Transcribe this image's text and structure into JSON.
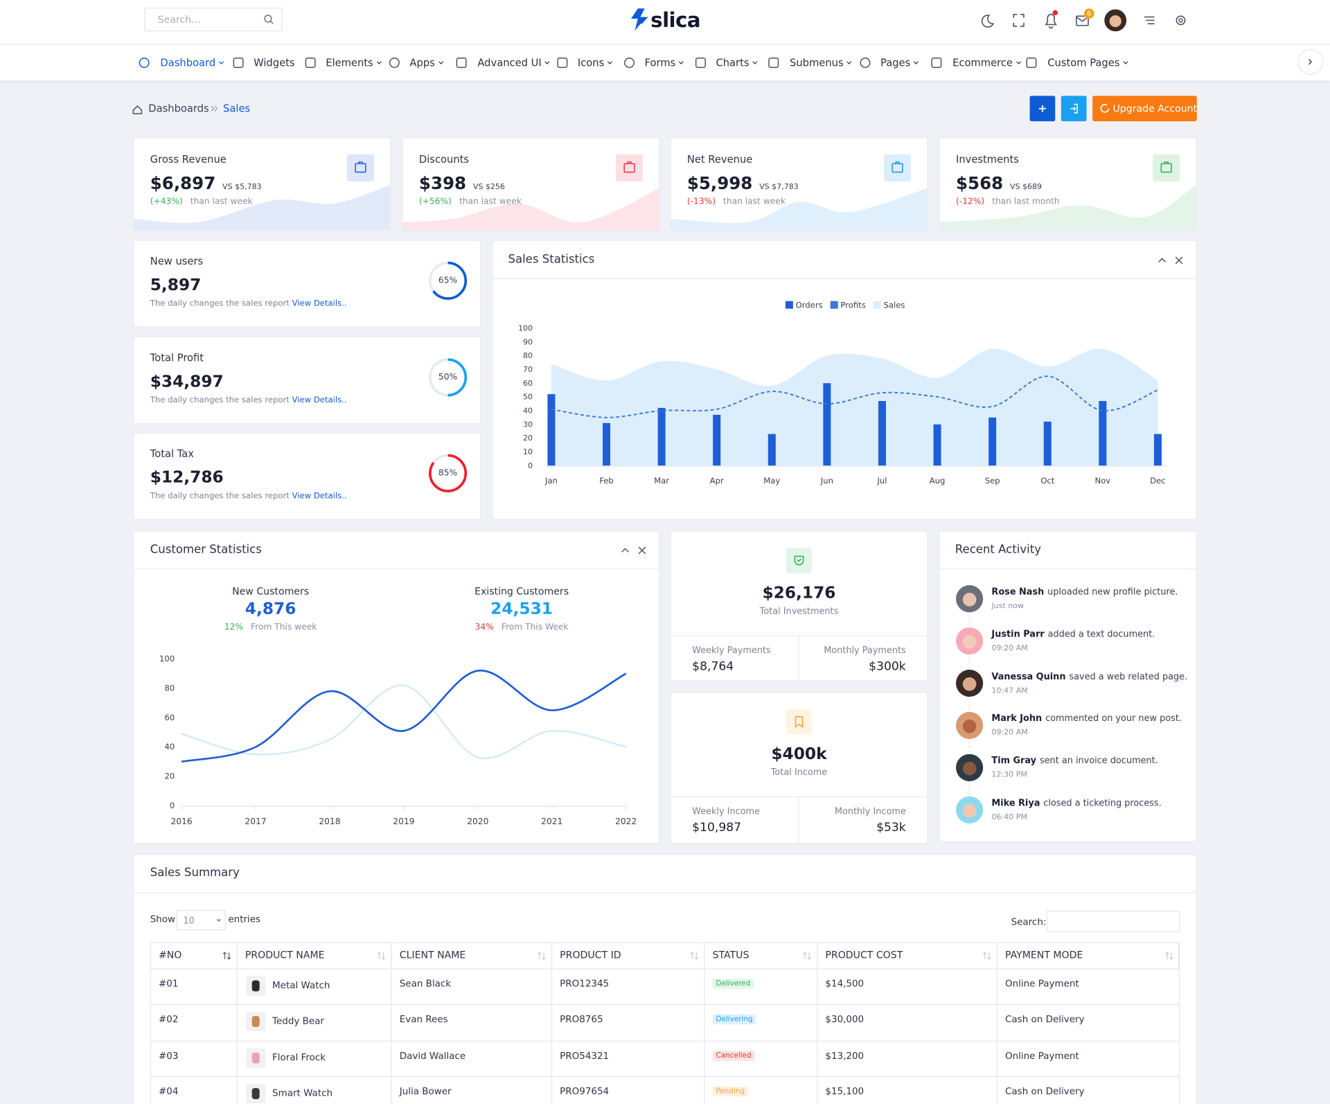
{
  "header": {
    "search_placeholder": "Search...",
    "logo": "slica",
    "mail_badge": "6"
  },
  "nav": [
    "Dashboard",
    "Widgets",
    "Elements",
    "Apps",
    "Advanced UI",
    "Icons",
    "Forms",
    "Charts",
    "Submenus",
    "Pages",
    "Ecommerce",
    "Custom Pages"
  ],
  "breadcrumb": [
    "Dashboards",
    "Sales"
  ],
  "upgrade_button": "Upgrade Account",
  "stat_cards": [
    {
      "title": "Gross Revenue",
      "value": "$6,897",
      "compare": "VS $5,783",
      "change": "(+43%)",
      "period": "than last week"
    },
    {
      "title": "Discounts",
      "value": "$398",
      "compare": "VS $256",
      "change": "(+56%)",
      "period": "than last week"
    },
    {
      "title": "Net Revenue",
      "value": "$5,998",
      "compare": "VS $7,783",
      "change": "(-13%)",
      "period": "than last week"
    },
    {
      "title": "Investments",
      "value": "$568",
      "compare": "VS $689",
      "change": "(-12%)",
      "period": "than last month"
    }
  ],
  "progress_cards": [
    {
      "title": "New users",
      "value": "5,897",
      "note": "The daily changes the sales report",
      "link": "View Details..",
      "percent": 65,
      "percent_label": "65%",
      "color": "#0d5cd6"
    },
    {
      "title": "Total Profit",
      "value": "$34,897",
      "note": "The daily changes the sales report",
      "link": "View Details..",
      "percent": 50,
      "percent_label": "50%",
      "color": "#1aa0f0"
    },
    {
      "title": "Total Tax",
      "value": "$12,786",
      "note": "The daily changes the sales report",
      "link": "View Details..",
      "percent": 85,
      "percent_label": "85%",
      "color": "#f01f2a"
    }
  ],
  "chart_data": [
    {
      "type": "bar",
      "title": "Sales Statistics",
      "categories": [
        "Jan",
        "Feb",
        "Mar",
        "Apr",
        "May",
        "Jun",
        "Jul",
        "Aug",
        "Sep",
        "Oct",
        "Nov",
        "Dec"
      ],
      "series": [
        {
          "name": "Orders",
          "type": "bar",
          "color": "#1e5fd9",
          "values": [
            52,
            31,
            42,
            37,
            23,
            60,
            47,
            30,
            35,
            32,
            47,
            23
          ]
        },
        {
          "name": "Profits",
          "type": "line",
          "dashed": true,
          "color": "#3a78dc",
          "values": [
            41,
            35,
            40,
            41,
            54,
            45,
            53,
            50,
            43,
            65,
            40,
            55
          ]
        },
        {
          "name": "Sales",
          "type": "area",
          "color": "#dcedfc",
          "values": [
            74,
            62,
            76,
            70,
            58,
            80,
            78,
            64,
            85,
            72,
            85,
            62
          ]
        }
      ],
      "ylim": [
        0,
        100
      ],
      "yticks": [
        0,
        10,
        20,
        30,
        40,
        50,
        60,
        70,
        80,
        90,
        100
      ],
      "grid": false,
      "legend": "top"
    },
    {
      "type": "line",
      "title": "Customer Statistics",
      "categories": [
        "2016",
        "2017",
        "2018",
        "2019",
        "2020",
        "2021",
        "2022"
      ],
      "series": [
        {
          "name": "New Customers",
          "color": "#1f5fd0",
          "values": [
            30,
            40,
            78,
            51,
            92,
            65,
            90
          ]
        },
        {
          "name": "Existing Customers",
          "color": "#d6e9fa",
          "values": [
            49,
            35,
            45,
            82,
            33,
            51,
            40
          ]
        }
      ],
      "ylim": [
        0,
        100
      ],
      "yticks": [
        0,
        20,
        40,
        60,
        80,
        100
      ],
      "grid": false
    }
  ],
  "customer_stats": [
    {
      "value": "4,876",
      "change": "12%",
      "period": "From This week"
    },
    {
      "value": "24,531",
      "change": "34%",
      "period": "From This Week"
    }
  ],
  "totals": [
    {
      "value": "$26,176",
      "label": "Total Investments",
      "items": [
        {
          "label": "Weekly Payments",
          "value": "$8,764"
        },
        {
          "label": "Monthly Payments",
          "value": "$300k"
        }
      ]
    },
    {
      "value": "$400k",
      "label": "Total Income",
      "items": [
        {
          "label": "Weekly Income",
          "value": "$10,987"
        },
        {
          "label": "Monthly Income",
          "value": "$53k"
        }
      ]
    }
  ],
  "recent_activity": {
    "title": "Recent Activity",
    "items": [
      {
        "name": "Rose Nash",
        "action": "uploaded new profile picture.",
        "time": "Just now"
      },
      {
        "name": "Justin Parr",
        "action": "added a text document.",
        "time": "09:20 AM"
      },
      {
        "name": "Vanessa Quinn",
        "action": "saved a web related page.",
        "time": "10:47 AM"
      },
      {
        "name": "Mark John",
        "action": "commented on your new post.",
        "time": "09:20 AM"
      },
      {
        "name": "Tim Gray",
        "action": "sent an invoice document.",
        "time": "12:30 PM"
      },
      {
        "name": "Mike Riya",
        "action": "closed a ticketing process.",
        "time": "06:40 PM"
      }
    ]
  },
  "sales_summary": {
    "title": "Sales Summary",
    "show": "Show",
    "page_length": "10",
    "entries": "entries",
    "search": "Search:",
    "columns": [
      "#NO",
      "PRODUCT NAME",
      "CLIENT NAME",
      "PRODUCT ID",
      "STATUS",
      "PRODUCT COST",
      "PAYMENT MODE"
    ],
    "rows": [
      [
        "#01",
        "Metal Watch",
        "Sean Black",
        "PRO12345",
        "Delivered",
        "$14,500",
        "Online Payment"
      ],
      [
        "#02",
        "Teddy Bear",
        "Evan Rees",
        "PRO8765",
        "Delivering",
        "$30,000",
        "Cash on Delivery"
      ],
      [
        "#03",
        "Floral Frock",
        "David Wallace",
        "PRO54321",
        "Cancelled",
        "$13,200",
        "Online Payment"
      ],
      [
        "#04",
        "Smart Watch",
        "Julia Bower",
        "PRO97654",
        "Pending",
        "$15,100",
        "Cash on Delivery"
      ]
    ]
  }
}
